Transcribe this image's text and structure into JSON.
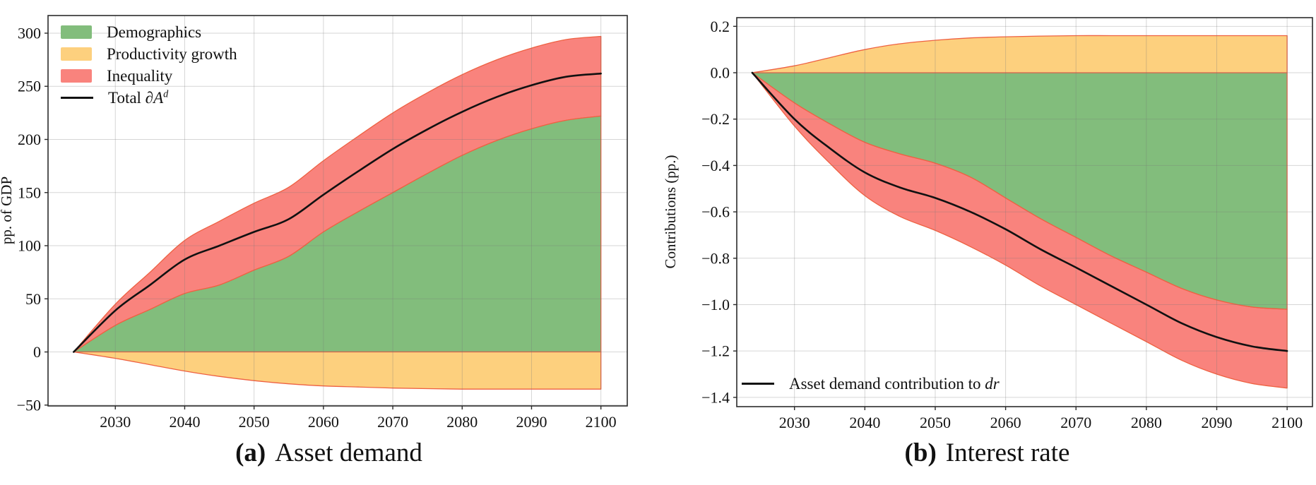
{
  "page": {
    "background": "#ffffff"
  },
  "colors": {
    "area_edge": "#ee6142",
    "grid_overlay": "#787878",
    "spine": "#2b2b2b",
    "total_line": "#111111"
  },
  "chart_data": [
    {
      "type": "area",
      "caption_tag": "(a)",
      "caption_text": "Asset demand",
      "ylabel": "pp. of GDP",
      "xlabel": "",
      "grid": true,
      "legend_position": "top-left",
      "x": [
        2024,
        2030,
        2035,
        2040,
        2045,
        2050,
        2055,
        2060,
        2065,
        2070,
        2075,
        2080,
        2085,
        2090,
        2095,
        2100
      ],
      "series": [
        {
          "name": "Demographics",
          "color": "#82bd7c",
          "values": [
            0,
            25,
            40,
            55,
            63,
            77,
            90,
            113,
            132,
            150,
            168,
            185,
            199,
            210,
            218,
            222
          ]
        },
        {
          "name": "Productivity growth",
          "color": "#fdd07e",
          "values": [
            0,
            -6,
            -12,
            -18,
            -23,
            -27,
            -30,
            -32,
            -33,
            -34,
            -34.5,
            -35,
            -35,
            -35,
            -35,
            -35
          ]
        },
        {
          "name": "Inequality",
          "color": "#f9837d",
          "values": [
            0,
            20,
            35,
            50,
            60,
            63,
            65,
            67,
            71,
            75,
            76,
            76,
            76,
            76,
            76,
            75
          ]
        },
        {
          "name": "Total ∂A^d",
          "type": "line",
          "color": "#111111",
          "label_prefix": "Total ∂",
          "label_symbol": "A",
          "label_sup": "d",
          "values": [
            0,
            39,
            63,
            87,
            100,
            113,
            125,
            148,
            170,
            191,
            209.5,
            226,
            240,
            251,
            259,
            262
          ]
        }
      ],
      "xticks": [
        2030,
        2040,
        2050,
        2060,
        2070,
        2080,
        2090,
        2100
      ],
      "yticks": [
        -50,
        0,
        50,
        100,
        150,
        200,
        250,
        300
      ],
      "ytick_decimals": 0,
      "xlim": [
        2020.3,
        2103.8
      ],
      "ylim": [
        -50.8,
        316.6
      ]
    },
    {
      "type": "area",
      "caption_tag": "(b)",
      "caption_text": "Interest rate",
      "ylabel": "Contributions (pp.)",
      "xlabel": "",
      "grid": true,
      "legend_position": "bottom-left",
      "x": [
        2024,
        2030,
        2035,
        2040,
        2045,
        2050,
        2055,
        2060,
        2065,
        2070,
        2075,
        2080,
        2085,
        2090,
        2095,
        2100
      ],
      "series": [
        {
          "name": "Demographics",
          "color": "#82bd7c",
          "values": [
            0,
            -0.13,
            -0.22,
            -0.3,
            -0.35,
            -0.39,
            -0.45,
            -0.54,
            -0.63,
            -0.71,
            -0.79,
            -0.86,
            -0.93,
            -0.98,
            -1.01,
            -1.02
          ]
        },
        {
          "name": "Productivity growth",
          "color": "#fdd07e",
          "values": [
            0,
            0.03,
            0.065,
            0.1,
            0.125,
            0.14,
            0.15,
            0.155,
            0.158,
            0.16,
            0.16,
            0.16,
            0.16,
            0.16,
            0.16,
            0.16
          ]
        },
        {
          "name": "Inequality",
          "color": "#f9837d",
          "values": [
            0,
            -0.1,
            -0.17,
            -0.23,
            -0.27,
            -0.29,
            -0.3,
            -0.29,
            -0.29,
            -0.29,
            -0.29,
            -0.3,
            -0.31,
            -0.32,
            -0.33,
            -0.34
          ]
        },
        {
          "name": "Asset demand contribution to dr",
          "type": "line",
          "color": "#111111",
          "label_prefix": "Asset demand contribution to ",
          "label_symbol": "dr",
          "label_sup": "",
          "values": [
            0,
            -0.2,
            -0.325,
            -0.43,
            -0.495,
            -0.54,
            -0.6,
            -0.675,
            -0.762,
            -0.84,
            -0.92,
            -1.0,
            -1.08,
            -1.14,
            -1.18,
            -1.2
          ]
        }
      ],
      "xticks": [
        2030,
        2040,
        2050,
        2060,
        2070,
        2080,
        2090,
        2100
      ],
      "yticks": [
        0.2,
        0.0,
        -0.2,
        -0.4,
        -0.6,
        -0.8,
        -1.0,
        -1.2,
        -1.4
      ],
      "ytick_decimals": 1,
      "xlim": [
        2021.8,
        2103.6
      ],
      "ylim": [
        -1.44,
        0.2375
      ]
    }
  ]
}
